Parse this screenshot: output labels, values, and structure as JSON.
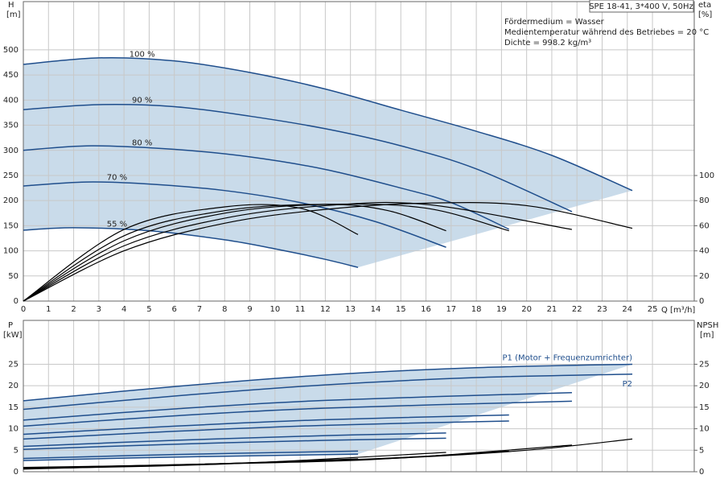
{
  "chart_data": [
    {
      "type": "line",
      "title": "SPE 18-41, 3*400 V, 50Hz",
      "annotations": [
        "Fördermedium = Wasser",
        "Medientemperatur während des Betriebes = 20 °C",
        "Dichte = 998.2 kg/m³"
      ],
      "y_label": "H",
      "y_unit": "[m]",
      "y2_label": "eta",
      "y2_unit": "[%]",
      "x_label": "Q [m³/h]",
      "xlim": [
        0,
        26.66
      ],
      "xticks": [
        0,
        1,
        2,
        3,
        4,
        5,
        6,
        7,
        8,
        9,
        10,
        11,
        12,
        13,
        14,
        15,
        16,
        17,
        18,
        19,
        20,
        21,
        22,
        23,
        24,
        25
      ],
      "ylim": [
        0,
        596
      ],
      "yticks": [
        0,
        50,
        100,
        150,
        200,
        250,
        300,
        350,
        400,
        450,
        500
      ],
      "y2lim": [
        0,
        238.5
      ],
      "y2ticks": [
        0,
        20,
        40,
        60,
        80,
        100
      ],
      "grid": true,
      "fill_color": "#c9dbea",
      "series": [
        {
          "name": "100 %",
          "color": "#1f4e8c",
          "x": [
            0,
            3,
            6,
            9,
            12,
            15,
            18,
            21,
            24.2
          ],
          "values": [
            471,
            484,
            478,
            455,
            422,
            380,
            338,
            290,
            220
          ]
        },
        {
          "name": "90 %",
          "color": "#1f4e8c",
          "x": [
            0,
            3,
            6,
            9,
            12,
            15,
            18,
            21.8
          ],
          "values": [
            381,
            391,
            387,
            368,
            343,
            309,
            263,
            178
          ]
        },
        {
          "name": "80 %",
          "color": "#1f4e8c",
          "x": [
            0,
            2.7,
            6,
            9,
            12,
            15,
            17,
            19.3
          ],
          "values": [
            300,
            309,
            302,
            287,
            262,
            225,
            196,
            143
          ]
        },
        {
          "name": "70 %",
          "color": "#1f4e8c",
          "x": [
            0,
            2.5,
            5,
            8,
            11,
            14,
            16.8
          ],
          "values": [
            229,
            237,
            233,
            220,
            196,
            158,
            107
          ]
        },
        {
          "name": "55 %",
          "color": "#1f4e8c",
          "x": [
            0,
            2,
            5,
            8,
            10,
            12,
            13.3
          ],
          "values": [
            141,
            146,
            140,
            122,
            104,
            83,
            67
          ]
        },
        {
          "axis": "y2",
          "color": "#000000",
          "x": [
            0,
            4,
            8,
            12,
            16,
            20,
            24.2
          ],
          "values": [
            0,
            40,
            62,
            73,
            78,
            76,
            58
          ]
        },
        {
          "axis": "y2",
          "color": "#000000",
          "x": [
            0,
            4,
            8,
            12,
            16,
            21.8
          ],
          "values": [
            0,
            44,
            66,
            76,
            77,
            57
          ]
        },
        {
          "axis": "y2",
          "color": "#000000",
          "x": [
            0,
            4,
            8,
            12,
            16,
            19.3
          ],
          "values": [
            0,
            48,
            70,
            77,
            74,
            56
          ]
        },
        {
          "axis": "y2",
          "color": "#000000",
          "x": [
            0,
            4,
            8,
            12,
            14.5,
            16.8
          ],
          "values": [
            0,
            52,
            72,
            77,
            72,
            56
          ]
        },
        {
          "axis": "y2",
          "color": "#000000",
          "x": [
            0,
            4,
            8,
            11,
            13.3
          ],
          "values": [
            0,
            57,
            75,
            74,
            53
          ]
        }
      ]
    },
    {
      "type": "line",
      "y_label": "P",
      "y_unit": "[kW]",
      "y2_label": "NPSH",
      "y2_unit": "[m]",
      "xlim": [
        0,
        26.66
      ],
      "xticks": [
        0,
        1,
        2,
        3,
        4,
        5,
        6,
        7,
        8,
        9,
        10,
        11,
        12,
        13,
        14,
        15,
        16,
        17,
        18,
        19,
        20,
        21,
        22,
        23,
        24,
        25
      ],
      "ylim": [
        0,
        35.2
      ],
      "yticks": [
        0,
        5,
        10,
        15,
        20,
        25
      ],
      "y2lim": [
        0,
        35.2
      ],
      "y2ticks": [
        0,
        5,
        10,
        15,
        20,
        25
      ],
      "grid": true,
      "fill_color": "#c9dbea",
      "series": [
        {
          "name": "P1 (Motor + Frequenzumrichter)",
          "color": "#1f4e8c",
          "x": [
            0,
            6,
            12,
            18,
            24.2
          ],
          "values": [
            16.5,
            19.8,
            22.5,
            24.2,
            25
          ]
        },
        {
          "color": "#1f4e8c",
          "x": [
            0,
            6,
            12,
            21.8
          ],
          "values": [
            12,
            14.6,
            16.6,
            18.4
          ]
        },
        {
          "color": "#1f4e8c",
          "x": [
            0,
            6,
            12,
            19.3
          ],
          "values": [
            8.7,
            10.6,
            12.1,
            13.2
          ]
        },
        {
          "color": "#1f4e8c",
          "x": [
            0,
            6,
            12,
            16.8
          ],
          "values": [
            5.9,
            7.3,
            8.4,
            9.0
          ]
        },
        {
          "color": "#1f4e8c",
          "x": [
            0,
            6,
            13.3
          ],
          "values": [
            3.1,
            4.0,
            4.8
          ]
        },
        {
          "name": "P2",
          "color": "#1f4e8c",
          "x": [
            0,
            6,
            12,
            18,
            24.2
          ],
          "values": [
            14.5,
            17.6,
            20.2,
            21.9,
            22.7
          ]
        },
        {
          "color": "#1f4e8c",
          "x": [
            0,
            6,
            12,
            21.8
          ],
          "values": [
            10.6,
            13.0,
            14.8,
            16.4
          ]
        },
        {
          "color": "#1f4e8c",
          "x": [
            0,
            6,
            12,
            19.3
          ],
          "values": [
            7.6,
            9.4,
            10.8,
            11.8
          ]
        },
        {
          "color": "#1f4e8c",
          "x": [
            0,
            6,
            12,
            16.8
          ],
          "values": [
            5.2,
            6.4,
            7.3,
            7.8
          ]
        },
        {
          "color": "#1f4e8c",
          "x": [
            0,
            6,
            13.3
          ],
          "values": [
            2.6,
            3.4,
            4.1
          ]
        },
        {
          "axis": "y2",
          "color": "#000000",
          "x": [
            0,
            5,
            10,
            15,
            20,
            24.2
          ],
          "values": [
            1,
            1.5,
            2.2,
            3.2,
            5,
            7.6
          ]
        },
        {
          "axis": "y2",
          "color": "#000000",
          "x": [
            0,
            10,
            15,
            21.8
          ],
          "values": [
            0.9,
            2.1,
            3.2,
            6.2
          ]
        },
        {
          "axis": "y2",
          "color": "#000000",
          "x": [
            0,
            10,
            15,
            19.3
          ],
          "values": [
            0.8,
            2.2,
            3.3,
            4.8
          ]
        },
        {
          "axis": "y2",
          "color": "#000000",
          "x": [
            0,
            8,
            16.8
          ],
          "values": [
            0.7,
            1.8,
            4.5
          ]
        },
        {
          "axis": "y2",
          "color": "#000000",
          "x": [
            0,
            8,
            13.3
          ],
          "values": [
            0.6,
            1.9,
            3.0
          ]
        }
      ]
    }
  ]
}
